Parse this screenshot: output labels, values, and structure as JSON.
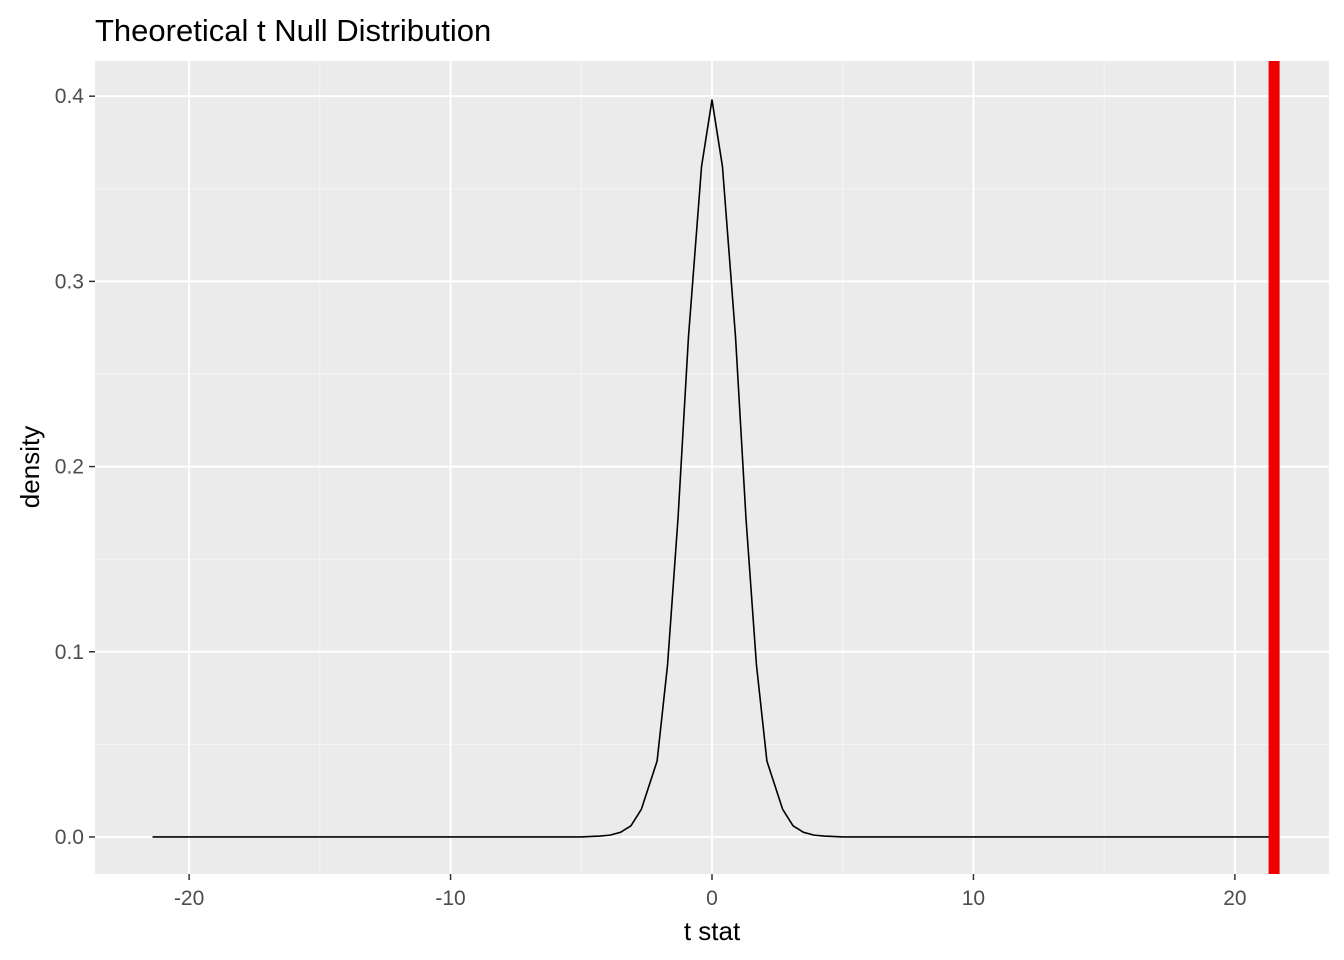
{
  "chart_data": {
    "type": "line",
    "title": "Theoretical t Null Distribution",
    "xlabel": "t stat",
    "ylabel": "density",
    "xlim": [
      -23.6,
      23.6
    ],
    "ylim": [
      -0.02,
      0.419
    ],
    "x_ticks": [
      -20,
      -10,
      0,
      10,
      20
    ],
    "x_tick_labels": [
      "-20",
      "-10",
      "0",
      "10",
      "20"
    ],
    "y_ticks": [
      0.0,
      0.1,
      0.2,
      0.3,
      0.4
    ],
    "y_tick_labels": [
      "0.0",
      "0.1",
      "0.2",
      "0.3",
      "0.4"
    ],
    "grid": true,
    "series": [
      {
        "color": "#000000",
        "x": [
          -21.4,
          -5.0,
          -4.3,
          -3.9,
          -3.5,
          -3.1,
          -2.7,
          -2.1,
          -1.7,
          -1.3,
          -0.9,
          -0.4,
          0.0,
          0.4,
          0.9,
          1.3,
          1.7,
          2.1,
          2.7,
          3.1,
          3.5,
          3.9,
          4.3,
          5.0,
          21.4
        ],
        "y": [
          0.0,
          0.0,
          0.0005,
          0.001,
          0.0025,
          0.006,
          0.015,
          0.041,
          0.093,
          0.172,
          0.27,
          0.362,
          0.398,
          0.362,
          0.27,
          0.172,
          0.093,
          0.041,
          0.015,
          0.006,
          0.0025,
          0.001,
          0.0005,
          0.0,
          0.0
        ]
      }
    ],
    "observed_stat": {
      "x": 21.5,
      "color": "#ee0000"
    },
    "colors": {
      "panel_background": "#ebebeb",
      "grid_major": "#ffffff",
      "grid_minor": "#f5f5f5",
      "tick_text": "#4d4d4d"
    }
  }
}
